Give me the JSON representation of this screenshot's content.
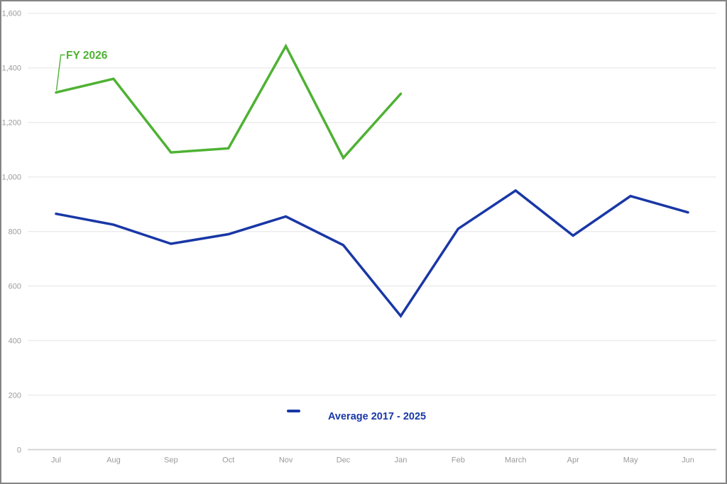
{
  "chart_data": {
    "type": "line",
    "title": "",
    "xlabel": "",
    "ylabel": "",
    "categories": [
      "Jul",
      "Aug",
      "Sep",
      "Oct",
      "Nov",
      "Dec",
      "Jan",
      "Feb",
      "March",
      "Apr",
      "May",
      "Jun"
    ],
    "series": [
      {
        "name": "FY 2026",
        "color": "#4eb233",
        "start_category": "Jul",
        "values": [
          1310,
          1360,
          1090,
          1105,
          1480,
          1070,
          1305
        ]
      },
      {
        "name": "Average 2017 - 2025",
        "color": "#1937a6",
        "start_category": "Jul",
        "values": [
          865,
          825,
          755,
          790,
          855,
          750,
          490,
          810,
          950,
          785,
          930,
          870
        ]
      }
    ],
    "ylim": [
      0,
      1600
    ],
    "yticks": [
      {
        "v": 0,
        "label": "0"
      },
      {
        "v": 200,
        "label": "200"
      },
      {
        "v": 400,
        "label": "400"
      },
      {
        "v": 600,
        "label": "600"
      },
      {
        "v": 800,
        "label": "800"
      },
      {
        "v": 1000,
        "label": "1,000"
      },
      {
        "v": 1200,
        "label": "1,200"
      },
      {
        "v": 1400,
        "label": "1,400"
      },
      {
        "v": 1600,
        "label": "1,600"
      }
    ],
    "grid": true,
    "legend": {
      "position": "bottom-center",
      "entries": [
        {
          "label": "Average 2017 - 2025",
          "color": "#1937a6"
        }
      ]
    },
    "annotations": [
      {
        "text": "FY 2026",
        "color": "#4eb233",
        "attached_to": {
          "series": "FY 2026",
          "category": "Jul"
        }
      }
    ]
  },
  "colors": {
    "grid": "#ebebeb",
    "baseline": "#d6d6d6",
    "tick_text": "#9a9a9a",
    "frame_border": "#858585"
  }
}
